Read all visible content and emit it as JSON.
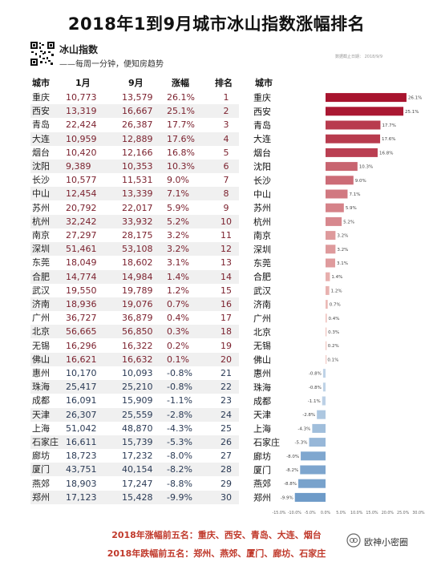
{
  "title": "2018年1到9月城市冰山指数涨幅排名",
  "brand": {
    "name": "冰山指数",
    "slogan": "——每周一分钟，便知房趋势",
    "source_note": "数据截止日期：          2018/9/9"
  },
  "table": {
    "headers": [
      "城市",
      "1月",
      "9月",
      "涨幅",
      "排名"
    ],
    "rows": [
      [
        "重庆",
        "10,773",
        "13,579",
        "26.1%",
        "1"
      ],
      [
        "西安",
        "13,319",
        "16,667",
        "25.1%",
        "2"
      ],
      [
        "青岛",
        "22,424",
        "26,387",
        "17.7%",
        "3"
      ],
      [
        "大连",
        "10,959",
        "12,889",
        "17.6%",
        "4"
      ],
      [
        "烟台",
        "10,420",
        "12,166",
        "16.8%",
        "5"
      ],
      [
        "沈阳",
        "9,389",
        "10,353",
        "10.3%",
        "6"
      ],
      [
        "长沙",
        "10,577",
        "11,531",
        "9.0%",
        "7"
      ],
      [
        "中山",
        "12,454",
        "13,339",
        "7.1%",
        "8"
      ],
      [
        "苏州",
        "20,792",
        "22,017",
        "5.9%",
        "9"
      ],
      [
        "杭州",
        "32,242",
        "33,932",
        "5.2%",
        "10"
      ],
      [
        "南京",
        "27,297",
        "28,175",
        "3.2%",
        "11"
      ],
      [
        "深圳",
        "51,461",
        "53,108",
        "3.2%",
        "12"
      ],
      [
        "东莞",
        "18,049",
        "18,602",
        "3.1%",
        "13"
      ],
      [
        "合肥",
        "14,774",
        "14,984",
        "1.4%",
        "14"
      ],
      [
        "武汉",
        "19,550",
        "19,789",
        "1.2%",
        "15"
      ],
      [
        "济南",
        "18,936",
        "19,076",
        "0.7%",
        "16"
      ],
      [
        "广州",
        "36,727",
        "36,879",
        "0.4%",
        "17"
      ],
      [
        "北京",
        "56,665",
        "56,850",
        "0.3%",
        "18"
      ],
      [
        "无锡",
        "16,296",
        "16,322",
        "0.2%",
        "19"
      ],
      [
        "佛山",
        "16,621",
        "16,632",
        "0.1%",
        "20"
      ],
      [
        "惠州",
        "10,170",
        "10,093",
        "-0.8%",
        "21"
      ],
      [
        "珠海",
        "25,417",
        "25,210",
        "-0.8%",
        "22"
      ],
      [
        "成都",
        "16,091",
        "15,909",
        "-1.1%",
        "23"
      ],
      [
        "天津",
        "26,307",
        "25,559",
        "-2.8%",
        "24"
      ],
      [
        "上海",
        "51,042",
        "48,870",
        "-4.3%",
        "25"
      ],
      [
        "石家庄",
        "16,611",
        "15,739",
        "-5.3%",
        "26"
      ],
      [
        "廊坊",
        "18,723",
        "17,232",
        "-8.0%",
        "27"
      ],
      [
        "厦门",
        "43,751",
        "40,154",
        "-8.2%",
        "28"
      ],
      [
        "燕郊",
        "18,903",
        "17,247",
        "-8.8%",
        "29"
      ],
      [
        "郑州",
        "17,123",
        "15,428",
        "-9.9%",
        "30"
      ]
    ]
  },
  "chart_data": {
    "type": "bar",
    "orientation": "horizontal",
    "header": "城市",
    "categories": [
      "重庆",
      "西安",
      "青岛",
      "大连",
      "烟台",
      "沈阳",
      "长沙",
      "中山",
      "苏州",
      "杭州",
      "南京",
      "深圳",
      "东莞",
      "合肥",
      "武汉",
      "济南",
      "广州",
      "北京",
      "无锡",
      "佛山",
      "惠州",
      "珠海",
      "成都",
      "天津",
      "上海",
      "石家庄",
      "廊坊",
      "厦门",
      "燕郊",
      "郑州"
    ],
    "values": [
      26.1,
      25.1,
      17.7,
      17.6,
      16.8,
      10.3,
      9.0,
      7.1,
      5.9,
      5.2,
      3.2,
      3.2,
      3.1,
      1.4,
      1.2,
      0.7,
      0.4,
      0.3,
      0.2,
      0.1,
      -0.8,
      -0.8,
      -1.1,
      -2.8,
      -4.3,
      -5.3,
      -8.0,
      -8.2,
      -8.8,
      -9.9
    ],
    "data_labels": [
      "26.1%",
      "25.1%",
      "17.7%",
      "17.6%",
      "16.8%",
      "10.3%",
      "9.0%",
      "7.1%",
      "5.9%",
      "5.2%",
      "3.2%",
      "3.2%",
      "3.1%",
      "1.4%",
      "1.2%",
      "0.7%",
      "0.4%",
      "0.3%",
      "0.2%",
      "0.1%",
      "-0.8%",
      "-0.8%",
      "-1.1%",
      "-2.8%",
      "-4.3%",
      "-5.3%",
      "-8.0%",
      "-8.2%",
      "-8.8%",
      "-9.9%"
    ],
    "xlim": [
      -15,
      30
    ],
    "x_ticks": [
      "-15.0%",
      "-10.0%",
      "-5.0%",
      "0.0%",
      "5.0%",
      "10.0%",
      "15.0%",
      "20.0%",
      "25.0%",
      "30.0%"
    ],
    "tick_values": [
      -15,
      -10,
      -5,
      0,
      5,
      10,
      15,
      20,
      25,
      30
    ],
    "colors": {
      "positive_high": "#a8142e",
      "positive_low": "#f4cfc8",
      "negative_low": "#c6d8ea",
      "negative_high": "#6e9bc8"
    }
  },
  "footer": {
    "line1": "2018年涨幅前五名：重庆、西安、青岛、大连、烟台",
    "line2": "2018年跌幅前五名：郑州、燕郊、厦门、廊坊、石家庄"
  },
  "watermark": "欧神小密圈"
}
